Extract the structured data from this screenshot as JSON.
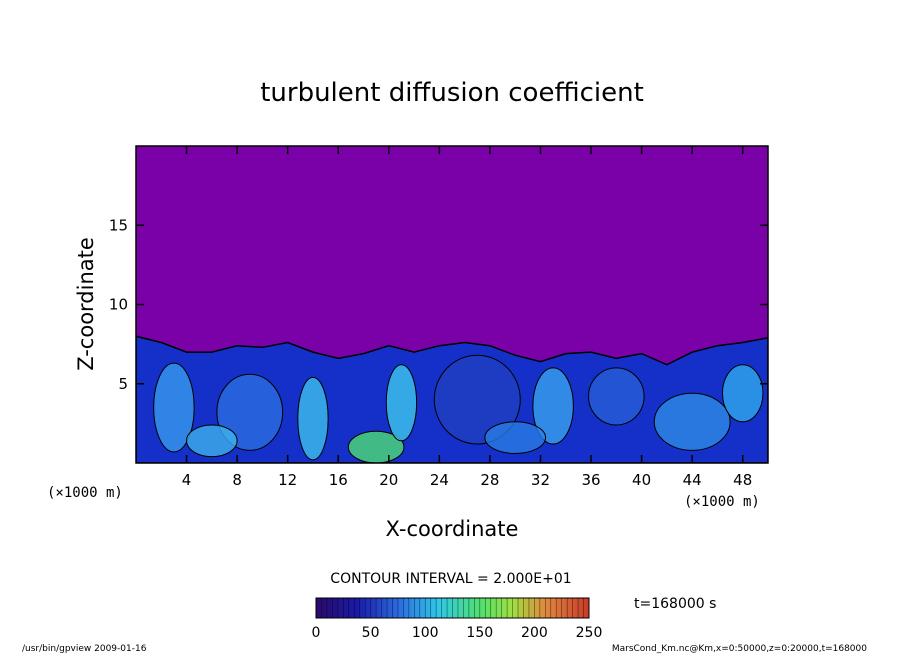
{
  "chart_data": {
    "type": "heatmap",
    "title": "turbulent diffusion coefficient",
    "xlabel": "X-coordinate",
    "ylabel": "Z-coordinate",
    "x_unit": "(×1000 m)",
    "y_unit": "(×1000 m)",
    "xlim": [
      0,
      50
    ],
    "ylim": [
      0,
      20
    ],
    "x_ticks": [
      4,
      8,
      12,
      16,
      20,
      24,
      28,
      32,
      36,
      40,
      44,
      48
    ],
    "y_ticks": [
      5,
      10,
      15
    ],
    "contour_interval": "CONTOUR INTERVAL = 2.000E+01",
    "colorbar": {
      "min": 0,
      "max": 250,
      "ticks": [
        0,
        50,
        100,
        150,
        200,
        250
      ]
    },
    "time_label": "t=168000 s",
    "boundary_layer_top": [
      [
        0,
        8.0
      ],
      [
        2,
        7.6
      ],
      [
        4,
        7.0
      ],
      [
        6,
        7.0
      ],
      [
        8,
        7.4
      ],
      [
        10,
        7.3
      ],
      [
        12,
        7.6
      ],
      [
        14,
        7.0
      ],
      [
        16,
        6.6
      ],
      [
        18,
        6.9
      ],
      [
        20,
        7.4
      ],
      [
        22,
        7.0
      ],
      [
        24,
        7.4
      ],
      [
        26,
        7.6
      ],
      [
        28,
        7.4
      ],
      [
        30,
        6.8
      ],
      [
        32,
        6.4
      ],
      [
        34,
        6.9
      ],
      [
        36,
        7.0
      ],
      [
        38,
        6.6
      ],
      [
        40,
        6.9
      ],
      [
        42,
        6.2
      ],
      [
        44,
        7.0
      ],
      [
        46,
        7.4
      ],
      [
        48,
        7.6
      ],
      [
        50,
        7.9
      ]
    ]
  },
  "footer": {
    "left": "/usr/bin/gpview   2009-01-16",
    "right": "MarsCond_Km.nc@Km,x=0:50000,z=0:20000,t=168000"
  }
}
